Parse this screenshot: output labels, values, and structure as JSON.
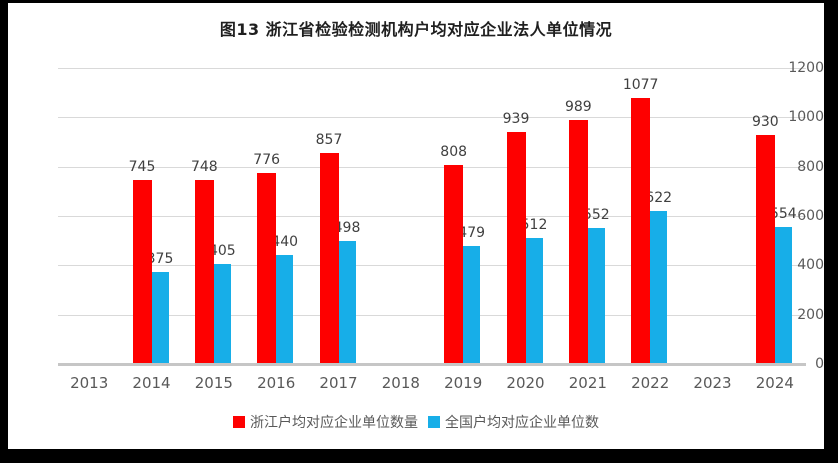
{
  "frame": {
    "background_color": "#000000",
    "chart_background_color": "#ffffff"
  },
  "chart_data": {
    "type": "bar",
    "title": "图13 浙江省检验检测机构户均对应企业法人单位情况",
    "categories": [
      "2013",
      "2014",
      "2015",
      "2016",
      "2017",
      "2018",
      "2019",
      "2020",
      "2021",
      "2022",
      "2023",
      "2024"
    ],
    "series": [
      {
        "name": "浙江户均对应企业单位数量",
        "color": "#FE0000",
        "values": [
          null,
          745,
          748,
          776,
          857,
          null,
          808,
          939,
          989,
          1077,
          null,
          930
        ]
      },
      {
        "name": "全国户均对应企业单位数",
        "color": "#17AEE8",
        "values": [
          null,
          375,
          405,
          440,
          498,
          null,
          479,
          512,
          552,
          622,
          null,
          554
        ]
      }
    ],
    "ylim": [
      0,
      1200
    ],
    "yticks": [
      0,
      200,
      400,
      600,
      800,
      1000,
      1200
    ],
    "grid": true,
    "data_labels": true,
    "legend_position": "bottom"
  },
  "styles": {
    "grid_color": "#d9d9d9",
    "axis_line_color": "#c6c6c6",
    "tick_label_color": "#595959",
    "data_label_color": "#404040",
    "title_color": "#1f1f1f"
  }
}
